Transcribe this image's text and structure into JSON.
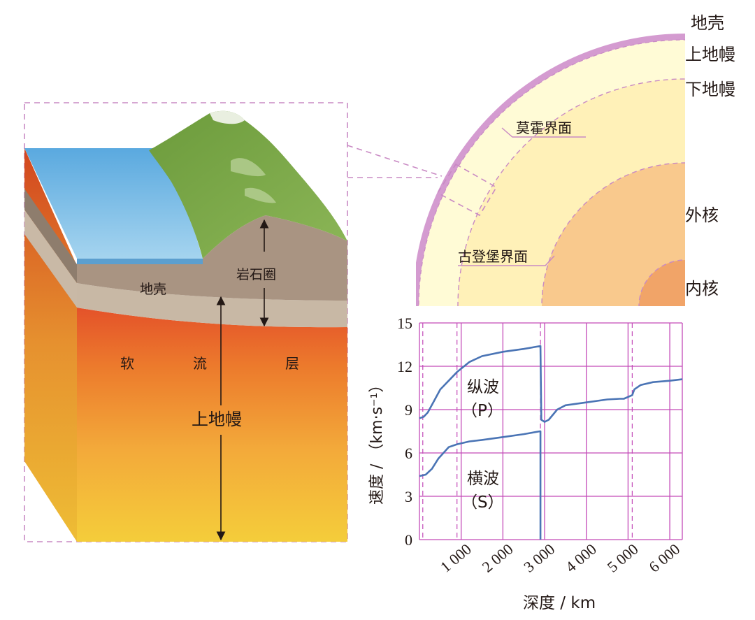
{
  "block": {
    "crust": "地壳",
    "lithosphere": "岩石圈",
    "asthenosphere_1": "软",
    "asthenosphere_2": "流",
    "asthenosphere_3": "层",
    "upper_mantle": "上地幔"
  },
  "earth": {
    "crust": "地壳",
    "upper_mantle": "上地幔",
    "lower_mantle": "下地幔",
    "outer_core": "外核",
    "inner_core": "内核",
    "moho": "莫霍界面",
    "gutenberg": "古登堡界面"
  },
  "chart_data": {
    "type": "line",
    "xlabel": "深度 / km",
    "ylabel": "速度 / （km·s⁻¹）",
    "xlim": [
      0,
      6300
    ],
    "ylim": [
      0,
      15
    ],
    "xticks": [
      "1 000",
      "2 000",
      "3 000",
      "4 000",
      "5 000",
      "6 000"
    ],
    "xtick_values": [
      1000,
      2000,
      3000,
      4000,
      5000,
      6000
    ],
    "yticks": [
      "0",
      "3",
      "6",
      "9",
      "12",
      "15"
    ],
    "ytick_values": [
      0,
      3,
      6,
      9,
      12,
      15
    ],
    "boundaries_km": [
      80,
      900,
      2900,
      5100
    ],
    "grid": true,
    "series": [
      {
        "name": "纵波（P）",
        "label_line1": "纵波",
        "label_line2": "（P）",
        "color": "#4a74b5",
        "x": [
          0,
          100,
          200,
          350,
          500,
          700,
          900,
          1200,
          1500,
          2000,
          2500,
          2890,
          2900,
          2920,
          3000,
          3100,
          3300,
          3500,
          4000,
          4500,
          4800,
          4900,
          5100,
          5150,
          5300,
          5600,
          6000,
          6300
        ],
        "y": [
          8.4,
          8.5,
          8.8,
          9.6,
          10.4,
          11.0,
          11.6,
          12.3,
          12.7,
          13.0,
          13.2,
          13.4,
          13.4,
          8.3,
          8.15,
          8.3,
          9.0,
          9.3,
          9.5,
          9.7,
          9.75,
          9.75,
          10.0,
          10.4,
          10.7,
          10.9,
          11.0,
          11.1
        ]
      },
      {
        "name": "横波（S）",
        "label_line1": "横波",
        "label_line2": "（S）",
        "color": "#4a74b5",
        "x": [
          0,
          150,
          300,
          450,
          700,
          900,
          1200,
          1500,
          2000,
          2500,
          2890,
          2900,
          2900
        ],
        "y": [
          4.4,
          4.5,
          4.9,
          5.6,
          6.4,
          6.6,
          6.8,
          6.9,
          7.1,
          7.3,
          7.5,
          7.5,
          0
        ]
      }
    ]
  },
  "colors": {
    "frame": "#c98ac4",
    "sea": "#6fb4e2",
    "crust_layer": "#a99482",
    "mantle_top": "#e66a2a",
    "mantle_bottom": "#f1c63a",
    "earth_crust": "#d49bd0",
    "upper_mantle_fill": "#fffbd6",
    "lower_mantle_fill": "#fde9a8",
    "outer_core_fill": "#f9c98d",
    "inner_core_fill": "#f1a468",
    "grid": "#c34ab8",
    "curve": "#4a74b5"
  }
}
